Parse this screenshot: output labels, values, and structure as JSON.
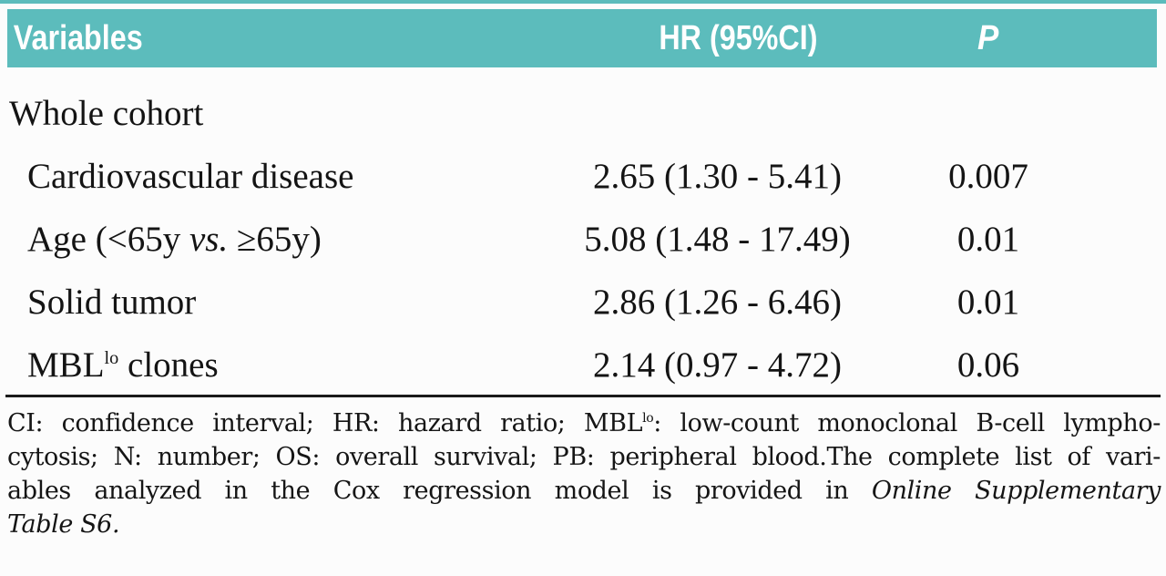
{
  "page": {
    "background": "#fcfcfc",
    "accent_teal": "#5cbcbc"
  },
  "table": {
    "headers": {
      "variables": "Variables",
      "hr": "HR (95%CI)",
      "p": "P"
    },
    "section_label": "Whole cohort",
    "rows": [
      {
        "variable": "Cardiovascular disease",
        "hr": "2.65 (1.30 - 5.41)",
        "p": "0.007"
      },
      {
        "variable_pre": "Age (<65y ",
        "variable_italic": "vs.",
        "variable_post": " ≥65y)",
        "hr": "5.08 (1.48 - 17.49)",
        "p": "0.01"
      },
      {
        "variable": "Solid tumor",
        "hr": "2.86 (1.26 - 6.46)",
        "p": "0.01"
      },
      {
        "variable_pre": "MBL",
        "variable_sup": "lo",
        "variable_post": " clones",
        "hr": "2.14 (0.97 - 4.72)",
        "p": "0.06"
      }
    ]
  },
  "footnote": {
    "line1_pre": "CI: confidence interval; HR: hazard ratio; MBL",
    "line1_sup": "lo",
    "line1_post": ": low-count monoclonal B-cell lympho-",
    "line2": "cytosis; N: number; OS: overall survival; PB: peripheral blood.The complete list of vari-",
    "line3_pre": "ables analyzed in the Cox regression model is provided in ",
    "line3_italic": "Online Supplementary",
    "line4_italic": "Table S6."
  }
}
